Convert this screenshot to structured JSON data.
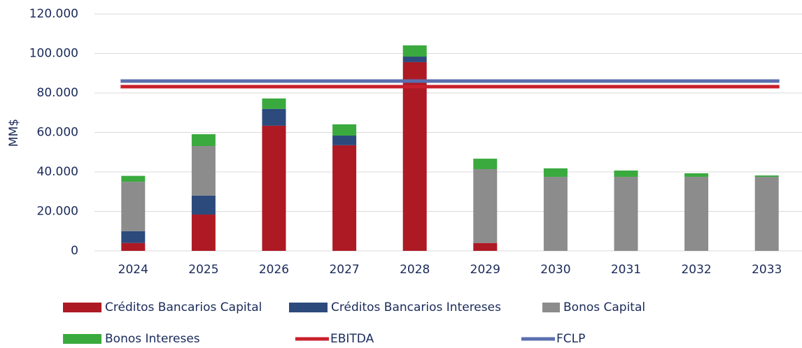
{
  "chart_data": {
    "type": "bar",
    "stacked": true,
    "y_label": "MM$",
    "categories": [
      "2024",
      "2025",
      "2026",
      "2027",
      "2028",
      "2029",
      "2030",
      "2031",
      "2032",
      "2033"
    ],
    "series": [
      {
        "name": "Créditos Bancarios Capital",
        "color": "#ad1a24",
        "values": [
          4000,
          18400,
          63400,
          53500,
          95600,
          4000,
          0,
          0,
          0,
          0
        ]
      },
      {
        "name": "Créditos Bancarios Intereses",
        "color": "#2c4a7c",
        "values": [
          6000,
          9600,
          8500,
          4900,
          2800,
          0,
          0,
          0,
          0,
          0
        ]
      },
      {
        "name": "Bonos Capital",
        "color": "#8c8c8c",
        "values": [
          25000,
          25100,
          0,
          0,
          0,
          37400,
          37500,
          37500,
          37500,
          37500
        ]
      },
      {
        "name": "Bonos Intereses",
        "color": "#3aaa3f",
        "values": [
          3000,
          6000,
          5300,
          5700,
          5700,
          5300,
          4300,
          3200,
          1800,
          700
        ]
      },
      {
        "name": "EBITDA",
        "type": "line",
        "color": "#c8202c",
        "values": [
          83200,
          83200,
          83200,
          83200,
          83200,
          83200,
          83200,
          83200,
          83200,
          83200
        ]
      },
      {
        "name": "FCLP",
        "type": "line",
        "color": "#5b6fae",
        "values": [
          86000,
          86000,
          86000,
          86000,
          86000,
          86000,
          86000,
          86000,
          86000,
          86000
        ]
      }
    ],
    "ylim": [
      0,
      120000
    ],
    "yticks": [
      0,
      {
        "value": 20000,
        "label": "20.000"
      },
      {
        "value": 40000,
        "label": "40.000"
      },
      {
        "value": 60000,
        "label": "60.000"
      },
      {
        "value": 80000,
        "label": "80.000"
      },
      {
        "value": 100000,
        "label": "100.000"
      },
      {
        "value": 120000,
        "label": "120.000"
      }
    ],
    "grid": true,
    "legend": "bottom"
  }
}
